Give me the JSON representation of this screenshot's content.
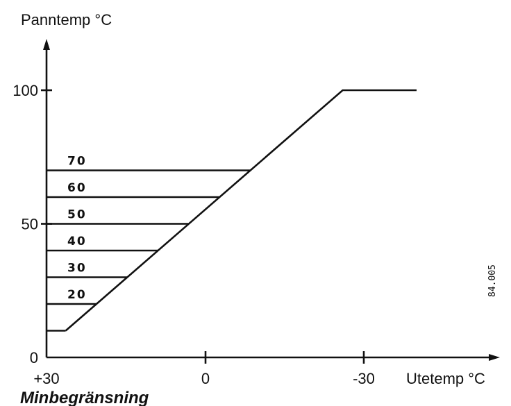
{
  "chart_data": {
    "type": "line",
    "title": "",
    "ylabel": "Panntemp °C",
    "xlabel": "Utetemp °C",
    "xlim": [
      35,
      -48
    ],
    "ylim": [
      0,
      120
    ],
    "x_ticks": [
      {
        "value": 30,
        "label": "+30"
      },
      {
        "value": 0,
        "label": "0"
      },
      {
        "value": -30,
        "label": "-30"
      }
    ],
    "y_ticks": [
      {
        "value": 0,
        "label": "0"
      },
      {
        "value": 50,
        "label": "50"
      },
      {
        "value": 100,
        "label": "100"
      }
    ],
    "curve": [
      {
        "x": 26.5,
        "y": 10
      },
      {
        "x": -26,
        "y": 100
      },
      {
        "x": -40,
        "y": 100
      }
    ],
    "min_limits": [
      {
        "label": "",
        "y": 10
      },
      {
        "label": "20",
        "y": 20
      },
      {
        "label": "30",
        "y": 30
      },
      {
        "label": "40",
        "y": 40
      },
      {
        "label": "50",
        "y": 50
      },
      {
        "label": "60",
        "y": 60
      },
      {
        "label": "70",
        "y": 70
      }
    ],
    "caption": "Minbegränsning",
    "reference": "84.005"
  }
}
